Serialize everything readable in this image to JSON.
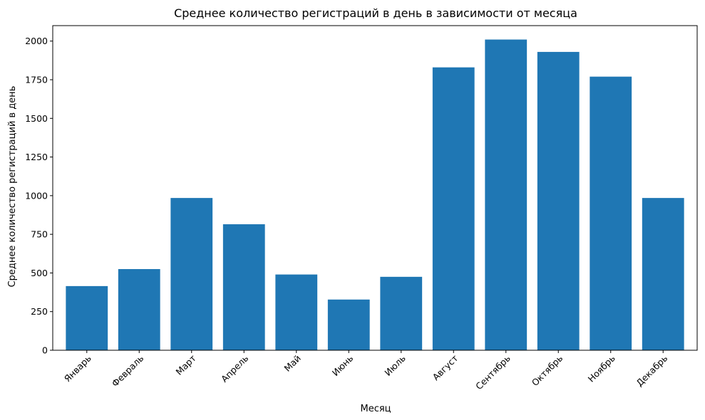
{
  "chart_data": {
    "type": "bar",
    "title": "Среднее количество регистраций в день в зависимости от месяца",
    "xlabel": "Месяц",
    "ylabel": "Среднее количество регистраций в день",
    "categories": [
      "Январь",
      "Февраль",
      "Март",
      "Апрель",
      "Май",
      "Июнь",
      "Июль",
      "Август",
      "Сентябрь",
      "Октябрь",
      "Ноябрь",
      "Декабрь"
    ],
    "values": [
      415,
      525,
      985,
      815,
      490,
      328,
      475,
      1830,
      2010,
      1930,
      1770,
      985
    ],
    "ylim": [
      0,
      2100
    ],
    "yticks": [
      0,
      250,
      500,
      750,
      1000,
      1250,
      1500,
      1750,
      2000
    ],
    "bar_color": "#1f77b4",
    "grid": false,
    "legend": "none"
  }
}
